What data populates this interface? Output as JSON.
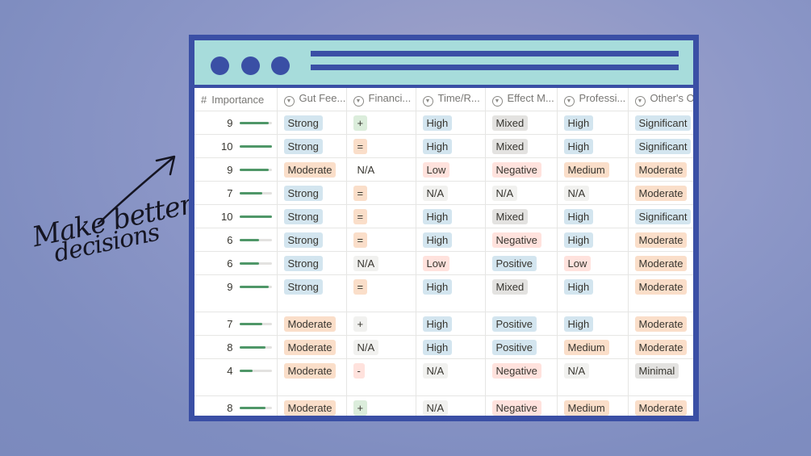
{
  "annotation": {
    "line1": "Make better",
    "line2": "decisions"
  },
  "colors": {
    "window_frame": "#3a4fa5",
    "titlebar": "#a7dcdb",
    "bar_fill": "#4f9768"
  },
  "table": {
    "columns": [
      {
        "label": "Importance",
        "icon": "number-icon"
      },
      {
        "label": "Gut Fee...",
        "icon": "select-icon"
      },
      {
        "label": "Financi...",
        "icon": "select-icon"
      },
      {
        "label": "Time/R...",
        "icon": "select-icon"
      },
      {
        "label": "Effect M...",
        "icon": "select-icon"
      },
      {
        "label": "Professi...",
        "icon": "select-icon"
      },
      {
        "label": "Other's Op",
        "icon": "select-icon"
      }
    ],
    "rows": [
      {
        "importance": "9",
        "fraction": 0.9,
        "gut": "Strong",
        "gut_c": "blue",
        "fin": "+",
        "fin_c": "green",
        "time": "High",
        "time_c": "blue",
        "effect": "Mixed",
        "effect_c": "gray",
        "prof": "High",
        "prof_c": "blue",
        "other": "Significant",
        "other_c": "blue",
        "tall": false
      },
      {
        "importance": "10",
        "fraction": 1.0,
        "gut": "Strong",
        "gut_c": "blue",
        "fin": "=",
        "fin_c": "orange",
        "time": "High",
        "time_c": "blue",
        "effect": "Mixed",
        "effect_c": "gray",
        "prof": "High",
        "prof_c": "blue",
        "other": "Significant",
        "other_c": "blue",
        "tall": false
      },
      {
        "importance": "9",
        "fraction": 0.9,
        "gut": "Moderate",
        "gut_c": "orange",
        "fin": "N/A",
        "fin_c": "none",
        "time": "Low",
        "time_c": "red",
        "effect": "Negative",
        "effect_c": "red",
        "prof": "Medium",
        "prof_c": "orange",
        "other": "Moderate",
        "other_c": "orange",
        "tall": false
      },
      {
        "importance": "7",
        "fraction": 0.7,
        "gut": "Strong",
        "gut_c": "blue",
        "fin": "=",
        "fin_c": "orange",
        "time": "N/A",
        "time_c": "light",
        "effect": "N/A",
        "effect_c": "light",
        "prof": "N/A",
        "prof_c": "light",
        "other": "Moderate",
        "other_c": "orange",
        "tall": false
      },
      {
        "importance": "10",
        "fraction": 1.0,
        "gut": "Strong",
        "gut_c": "blue",
        "fin": "=",
        "fin_c": "orange",
        "time": "High",
        "time_c": "blue",
        "effect": "Mixed",
        "effect_c": "gray",
        "prof": "High",
        "prof_c": "blue",
        "other": "Significant",
        "other_c": "blue",
        "tall": false
      },
      {
        "importance": "6",
        "fraction": 0.6,
        "gut": "Strong",
        "gut_c": "blue",
        "fin": "=",
        "fin_c": "orange",
        "time": "High",
        "time_c": "blue",
        "effect": "Negative",
        "effect_c": "red",
        "prof": "High",
        "prof_c": "blue",
        "other": "Moderate",
        "other_c": "orange",
        "tall": false
      },
      {
        "importance": "6",
        "fraction": 0.6,
        "gut": "Strong",
        "gut_c": "blue",
        "fin": "N/A",
        "fin_c": "light",
        "time": "Low",
        "time_c": "red",
        "effect": "Positive",
        "effect_c": "blue",
        "prof": "Low",
        "prof_c": "red",
        "other": "Moderate",
        "other_c": "orange",
        "tall": false
      },
      {
        "importance": "9",
        "fraction": 0.9,
        "gut": "Strong",
        "gut_c": "blue",
        "fin": "=",
        "fin_c": "orange",
        "time": "High",
        "time_c": "blue",
        "effect": "Mixed",
        "effect_c": "gray",
        "prof": "High",
        "prof_c": "blue",
        "other": "Moderate",
        "other_c": "orange",
        "tall": true
      },
      {
        "importance": "7",
        "fraction": 0.7,
        "gut": "Moderate",
        "gut_c": "orange",
        "fin": "+",
        "fin_c": "light",
        "time": "High",
        "time_c": "blue",
        "effect": "Positive",
        "effect_c": "blue",
        "prof": "High",
        "prof_c": "blue",
        "other": "Moderate",
        "other_c": "orange",
        "tall": false
      },
      {
        "importance": "8",
        "fraction": 0.8,
        "gut": "Moderate",
        "gut_c": "orange",
        "fin": "N/A",
        "fin_c": "light",
        "time": "High",
        "time_c": "blue",
        "effect": "Positive",
        "effect_c": "blue",
        "prof": "Medium",
        "prof_c": "orange",
        "other": "Moderate",
        "other_c": "orange",
        "tall": false
      },
      {
        "importance": "4",
        "fraction": 0.4,
        "gut": "Moderate",
        "gut_c": "orange",
        "fin": "-",
        "fin_c": "red",
        "time": "N/A",
        "time_c": "light",
        "effect": "Negative",
        "effect_c": "red",
        "prof": "N/A",
        "prof_c": "light",
        "other": "Minimal",
        "other_c": "gray",
        "tall": true
      },
      {
        "importance": "8",
        "fraction": 0.8,
        "gut": "Moderate",
        "gut_c": "orange",
        "fin": "+",
        "fin_c": "green",
        "time": "N/A",
        "time_c": "light",
        "effect": "Negative",
        "effect_c": "red",
        "prof": "Medium",
        "prof_c": "orange",
        "other": "Moderate",
        "other_c": "orange",
        "tall": false
      }
    ]
  }
}
